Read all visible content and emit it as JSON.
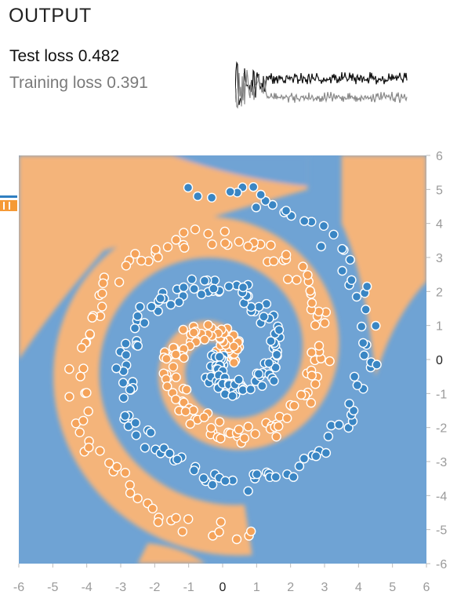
{
  "output": {
    "title": "OUTPUT",
    "test_loss_label": "Test loss",
    "test_loss_value": "0.482",
    "training_loss_label": "Training loss",
    "training_loss_value": "0.391"
  },
  "colors": {
    "positive_class": "#f5a35a",
    "negative_class": "#3a86c4",
    "region_orange": "#f4b47a",
    "region_blue": "#6fa3d4",
    "test_curve": "#111111",
    "train_curve": "#8a8a8a"
  },
  "chart_data": {
    "type": "scatter",
    "title": "",
    "xlabel": "",
    "ylabel": "",
    "xlim": [
      -6,
      6
    ],
    "ylim": [
      -6,
      6
    ],
    "x_ticks": [
      "-6",
      "-5",
      "-4",
      "-3",
      "-2",
      "-1",
      "0",
      "1",
      "2",
      "3",
      "4",
      "5",
      "6"
    ],
    "y_ticks": [
      "6",
      "5",
      "4",
      "3",
      "2",
      "1",
      "0",
      "-1",
      "-2",
      "-3",
      "-4",
      "-5",
      "-6"
    ],
    "grid": false,
    "dataset": "spiral",
    "classes": [
      {
        "color": "#f5a35a",
        "spiral_phase": 0
      },
      {
        "color": "#3a86c4",
        "spiral_phase": 3.14159
      }
    ],
    "points_per_class": 220,
    "max_radius": 5.0,
    "turns": 1.75
  }
}
